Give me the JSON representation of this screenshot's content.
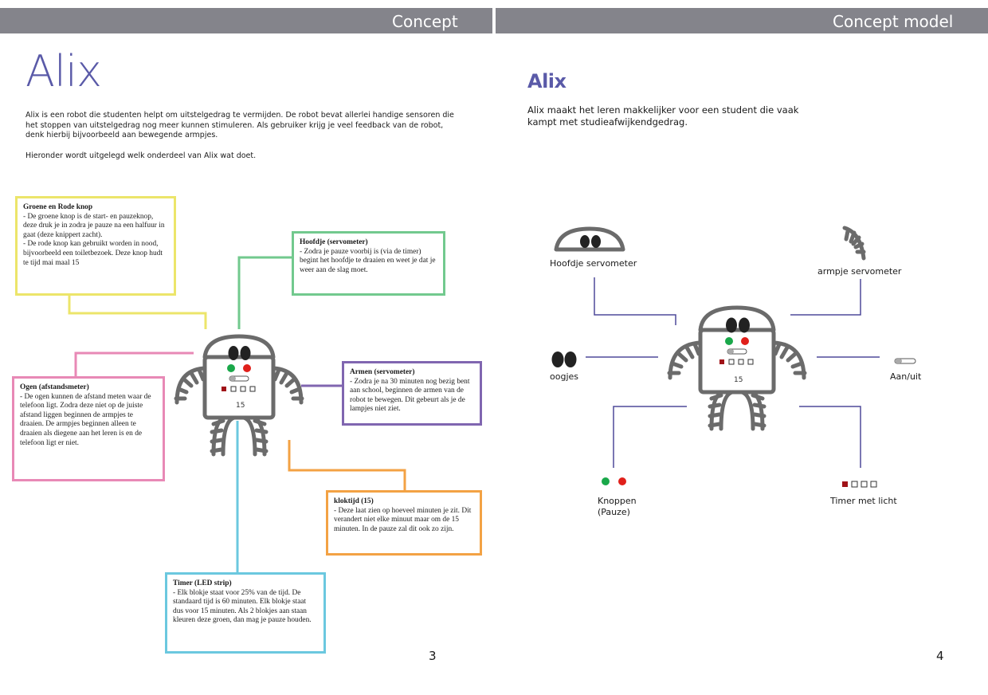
{
  "left_page": {
    "section_label": "Concept",
    "title": "Alix",
    "intro": "Alix is een robot die studenten helpt om uitstelgedrag te vermijden. De robot bevat allerlei handige sensoren die het stoppen van uitstelgedrag nog meer kunnen stimuleren. Als gebruiker krijg je veel feedback van de robot, denk hierbij bijvoorbeeld aan bewegende armpjes.",
    "intro2": "Hieronder wordt uitgelegd welk onderdeel van Alix wat doet.",
    "robot_display": "15",
    "page_number": "3",
    "callouts": {
      "buttons": {
        "title": "Groene en Rode knop",
        "text": "- De groene knop is de start- en pauzeknop, deze druk je in zodra je pauze na een halfuur in gaat (deze knippert zacht).\n- De rode knop kan gebruikt worden in nood, bijvoorbeeld een toiletbezoek. Deze knop hudt te tijd mai maal 15"
      },
      "head": {
        "title": "Hoofdje (servometer)",
        "text": "- Zodra je pauze voorbij is (via de timer) begint het hoofdje te draaien en weet je dat je weer aan de slag moet."
      },
      "eyes": {
        "title": "Ogen (afstandsmeter)",
        "text": "- De ogen kunnen de afstand meten waar de telefoon ligt. Zodra deze niet op de juiste afstand liggen beginnen de armpjes te draaien. De armpjes beginnen alleen te draaien als diegene aan het leren is en de telefoon ligt er niet."
      },
      "arms": {
        "title": "Armen (servometer)",
        "text": "- Zodra je na 30 minuten nog bezig bent aan school, beginnen de armen van de robot te bewegen. Dit gebeurt als je de lampjes niet ziet."
      },
      "clock": {
        "title": "kloktijd (15)",
        "text": "- Deze laat zien op hoeveel minuten je zit. Dit verandert niet elke minuut maar om de 15 minuten. In de pauze zal dit ook zo zijn."
      },
      "timer": {
        "title": "Timer (LED strip)",
        "text": "- Elk blokje staat voor 25% van de tijd. De standaard tijd is 60 minuten. Elk blokje staat dus voor 15 minuten. Als 2 blokjes aan staan kleuren deze groen, dan mag je pauze houden."
      }
    }
  },
  "right_page": {
    "section_label": "Concept model",
    "title": "Alix",
    "description": "Alix maakt het leren makkelijker voor een student die vaak kampt met studieafwijkendgedrag.",
    "robot_display": "15",
    "page_number": "4",
    "labels": {
      "head": "Hoofdje servometer",
      "arm": "armpje servometer",
      "eyes": "oogjes",
      "switch": "Aan/uit",
      "buttons_line1": "Knoppen",
      "buttons_line2": "(Pauze)",
      "timer": "Timer met licht"
    }
  },
  "colors": {
    "header_bar": "#84848b",
    "title": "#5a5aa8",
    "yellow": "#ece56a",
    "green": "#72c98e",
    "pink": "#e889b6",
    "purple": "#8066b0",
    "orange": "#f3a244",
    "blue": "#6bc8df",
    "connector": "#4e4a9a",
    "robot": "#6b6b6b",
    "led_green": "#1aa84a",
    "led_red": "#e0201b",
    "led_dark_red": "#a01218"
  }
}
